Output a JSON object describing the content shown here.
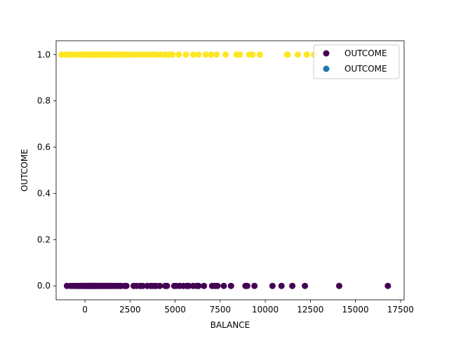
{
  "chart_data": {
    "type": "scatter",
    "xlabel": "BALANCE",
    "ylabel": "OUTCOME",
    "xlim": [
      -1600,
      17700
    ],
    "ylim": [
      -0.06,
      1.06
    ],
    "xticks": [
      0,
      2500,
      5000,
      7500,
      10000,
      12500,
      15000,
      17500
    ],
    "yticks": [
      0.0,
      0.2,
      0.4,
      0.6,
      0.8,
      1.0
    ],
    "xtick_labels": [
      "0",
      "2500",
      "5000",
      "7500",
      "10000",
      "12500",
      "15000",
      "17500"
    ],
    "ytick_labels": [
      "0.0",
      "0.2",
      "0.4",
      "0.6",
      "0.8",
      "1.0"
    ],
    "grid": false,
    "legend_position": "top-right",
    "legend": [
      {
        "label": "OUTCOME",
        "color": "#440154"
      },
      {
        "label": "OUTCOME",
        "color": "#1f77b4"
      }
    ],
    "series": [
      {
        "outcome_value": 1,
        "color": "#fde725",
        "x": [
          -1300,
          -1100,
          -950,
          -800,
          -700,
          -450,
          -350,
          -250,
          -150,
          -80,
          0,
          60,
          120,
          180,
          240,
          300,
          360,
          420,
          480,
          540,
          600,
          660,
          720,
          780,
          850,
          920,
          990,
          1060,
          1130,
          1200,
          1280,
          1360,
          1450,
          1550,
          1650,
          1760,
          1880,
          2000,
          2150,
          2300,
          2480,
          2650,
          2850,
          3050,
          3300,
          3550,
          3750,
          3950,
          4200,
          4450,
          4650,
          4850,
          5200,
          5600,
          6000,
          6300,
          6700,
          7000,
          7300,
          7800,
          8400,
          8600,
          9100,
          9300,
          9700,
          11200,
          11250,
          11800,
          12300,
          12700
        ]
      },
      {
        "outcome_value": 0,
        "color": "#440154",
        "x": [
          -1000,
          -800,
          -650,
          -500,
          -400,
          -300,
          -200,
          -120,
          -50,
          20,
          80,
          140,
          200,
          260,
          320,
          380,
          440,
          500,
          560,
          620,
          680,
          740,
          800,
          860,
          930,
          1000,
          1070,
          1140,
          1210,
          1290,
          1370,
          1460,
          1560,
          1660,
          1770,
          1880,
          2000,
          2200,
          2300,
          2700,
          2850,
          3050,
          3200,
          3450,
          3650,
          3800,
          3950,
          4150,
          4450,
          4550,
          4950,
          5050,
          5250,
          5450,
          5650,
          5750,
          6000,
          6200,
          6300,
          6600,
          7050,
          7200,
          7350,
          7700,
          8100,
          8900,
          9000,
          9400,
          10400,
          10900,
          11500,
          12200,
          14100,
          16800
        ]
      }
    ]
  }
}
